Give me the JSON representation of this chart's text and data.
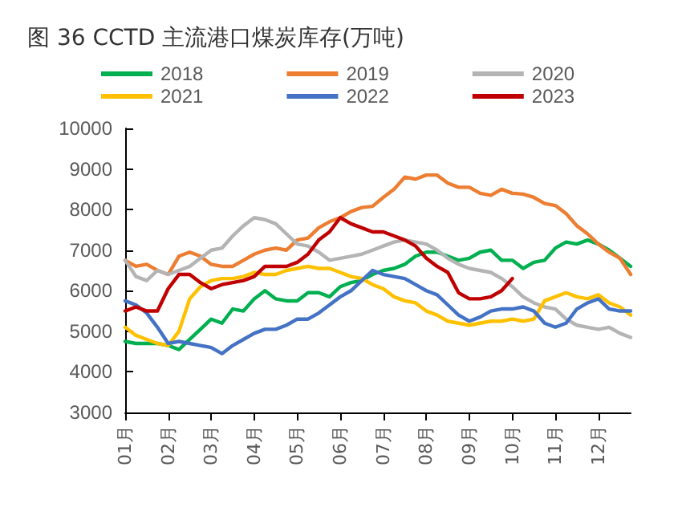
{
  "chart_data": {
    "type": "line",
    "title": "图 36 CCTD 主流港口煤炭库存(万吨)",
    "categories": [
      "01月",
      null,
      null,
      null,
      "02月",
      null,
      null,
      null,
      "03月",
      null,
      null,
      null,
      "04月",
      null,
      null,
      null,
      "05月",
      null,
      null,
      null,
      "06月",
      null,
      null,
      null,
      "07月",
      null,
      null,
      null,
      "08月",
      null,
      null,
      null,
      "09月",
      null,
      null,
      null,
      "10月",
      null,
      null,
      null,
      "11月",
      null,
      null,
      null,
      "12月",
      null,
      null,
      null
    ],
    "ylim": [
      3000,
      10000
    ],
    "yticks": [
      3000,
      4000,
      5000,
      6000,
      7000,
      8000,
      9000,
      10000
    ],
    "grid": false,
    "legend": "top",
    "marker": "none",
    "line_style": "solid",
    "series": [
      {
        "name": "2018",
        "color": "#00b050",
        "values": [
          4750,
          4700,
          4700,
          4700,
          4650,
          4550,
          4800,
          5050,
          5300,
          5200,
          5550,
          5500,
          5800,
          6000,
          5800,
          5750,
          5750,
          5950,
          5950,
          5850,
          6100,
          6200,
          6250,
          6400,
          6500,
          6550,
          6650,
          6850,
          6950,
          6950,
          6850,
          6750,
          6800,
          6950,
          7000,
          6750,
          6750,
          6550,
          6700,
          6750,
          7050,
          7200,
          7150,
          7250,
          7150,
          7000,
          6800,
          6600
        ]
      },
      {
        "name": "2019",
        "color": "#ed7d31",
        "values": [
          6750,
          6600,
          6650,
          6500,
          6400,
          6850,
          6950,
          6850,
          6650,
          6600,
          6600,
          6750,
          6900,
          7000,
          7050,
          7000,
          7250,
          7300,
          7550,
          7700,
          7800,
          7950,
          8050,
          8080,
          8300,
          8500,
          8800,
          8750,
          8850,
          8850,
          8650,
          8550,
          8550,
          8400,
          8350,
          8500,
          8400,
          8380,
          8300,
          8150,
          8100,
          7900,
          7600,
          7400,
          7150,
          6950,
          6800,
          6400
        ]
      },
      {
        "name": "2020",
        "color": "#b4b4b4",
        "values": [
          6750,
          6350,
          6250,
          6500,
          6400,
          6500,
          6600,
          6800,
          7000,
          7050,
          7350,
          7600,
          7800,
          7750,
          7650,
          7400,
          7150,
          7100,
          6950,
          6750,
          6800,
          6850,
          6900,
          7000,
          7100,
          7200,
          7250,
          7200,
          7150,
          7000,
          6800,
          6650,
          6550,
          6500,
          6450,
          6300,
          6100,
          5850,
          5700,
          5600,
          5550,
          5300,
          5150,
          5100,
          5050,
          5100,
          4950,
          4850
        ]
      },
      {
        "name": "2021",
        "color": "#ffc000",
        "values": [
          5100,
          4900,
          4800,
          4700,
          4650,
          5000,
          5800,
          6100,
          6250,
          6300,
          6300,
          6350,
          6450,
          6400,
          6400,
          6500,
          6550,
          6600,
          6550,
          6550,
          6450,
          6350,
          6300,
          6150,
          6050,
          5850,
          5750,
          5700,
          5500,
          5400,
          5250,
          5200,
          5150,
          5200,
          5250,
          5250,
          5300,
          5250,
          5300,
          5750,
          5850,
          5950,
          5850,
          5800,
          5900,
          5700,
          5600,
          5400
        ]
      },
      {
        "name": "2022",
        "color": "#4472c4",
        "values": [
          5750,
          5650,
          5450,
          5100,
          4700,
          4750,
          4700,
          4650,
          4600,
          4450,
          4650,
          4800,
          4950,
          5050,
          5050,
          5150,
          5300,
          5300,
          5450,
          5650,
          5850,
          6000,
          6250,
          6500,
          6400,
          6350,
          6300,
          6150,
          6000,
          5900,
          5650,
          5400,
          5250,
          5350,
          5500,
          5550,
          5550,
          5600,
          5500,
          5200,
          5100,
          5200,
          5550,
          5700,
          5800,
          5550,
          5500,
          5500
        ]
      },
      {
        "name": "2023",
        "color": "#c00000",
        "values": [
          5500,
          5600,
          5500,
          5500,
          6050,
          6400,
          6400,
          6200,
          6050,
          6150,
          6200,
          6250,
          6350,
          6600,
          6600,
          6600,
          6700,
          6900,
          7250,
          7450,
          7800,
          7650,
          7550,
          7450,
          7450,
          7350,
          7250,
          7100,
          6800,
          6600,
          6450,
          5950,
          5800,
          5800,
          5850,
          6000,
          6300,
          null,
          null,
          null,
          null,
          null,
          null,
          null,
          null,
          null,
          null,
          null
        ]
      }
    ]
  }
}
